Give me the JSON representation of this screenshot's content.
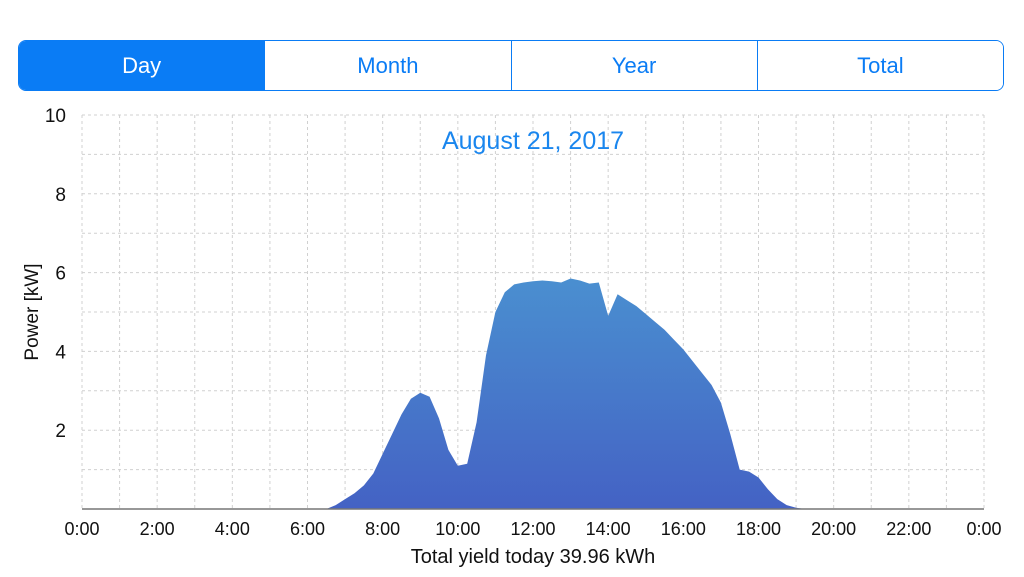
{
  "segments": {
    "selected": "Day",
    "items": [
      "Day",
      "Month",
      "Year",
      "Total"
    ]
  },
  "chart_data": {
    "type": "area",
    "title": "August 21, 2017",
    "ylabel": "Power [kW]",
    "xlabel": "Total yield today 39.96 kWh",
    "x_tick_labels": [
      "0:00",
      "2:00",
      "4:00",
      "6:00",
      "8:00",
      "10:00",
      "12:00",
      "14:00",
      "16:00",
      "18:00",
      "20:00",
      "22:00",
      "0:00"
    ],
    "y_tick_labels": [
      "2",
      "4",
      "6",
      "8",
      "10"
    ],
    "ylim": [
      0,
      10
    ],
    "xlim_hours": [
      0,
      24
    ],
    "grid": true,
    "colors": {
      "area_top": "#4a8fd0",
      "area_bottom": "#4462c4",
      "accent": "#0a7cf5"
    },
    "series": [
      {
        "hours": [
          6.5,
          6.75,
          7.0,
          7.25,
          7.5,
          7.75,
          8.0,
          8.25,
          8.5,
          8.75,
          9.0,
          9.25,
          9.5,
          9.75,
          10.0,
          10.25,
          10.5,
          10.75,
          11.0,
          11.25,
          11.5,
          11.75,
          12.0,
          12.25,
          12.5,
          12.75,
          13.0,
          13.25,
          13.5,
          13.75,
          14.0,
          14.25,
          14.5,
          14.75,
          15.0,
          15.25,
          15.5,
          15.75,
          16.0,
          16.25,
          16.5,
          16.75,
          17.0,
          17.25,
          17.5,
          17.75,
          18.0,
          18.25,
          18.5,
          18.75,
          19.0,
          19.25,
          19.5,
          19.75,
          20.0,
          20.25
        ],
        "power_kw": [
          0.0,
          0.1,
          0.25,
          0.4,
          0.6,
          0.9,
          1.4,
          1.9,
          2.4,
          2.8,
          2.95,
          2.85,
          2.3,
          1.5,
          1.1,
          1.15,
          2.2,
          3.9,
          5.0,
          5.5,
          5.7,
          5.75,
          5.78,
          5.8,
          5.78,
          5.75,
          5.85,
          5.8,
          5.72,
          5.75,
          4.9,
          5.45,
          5.3,
          5.15,
          4.95,
          4.75,
          4.55,
          4.3,
          4.05,
          3.75,
          3.45,
          3.15,
          2.7,
          1.9,
          1.0,
          0.95,
          0.8,
          0.5,
          0.25,
          0.1,
          0.03,
          0.0,
          0.0,
          0.0,
          0.0,
          0.0
        ]
      }
    ]
  }
}
